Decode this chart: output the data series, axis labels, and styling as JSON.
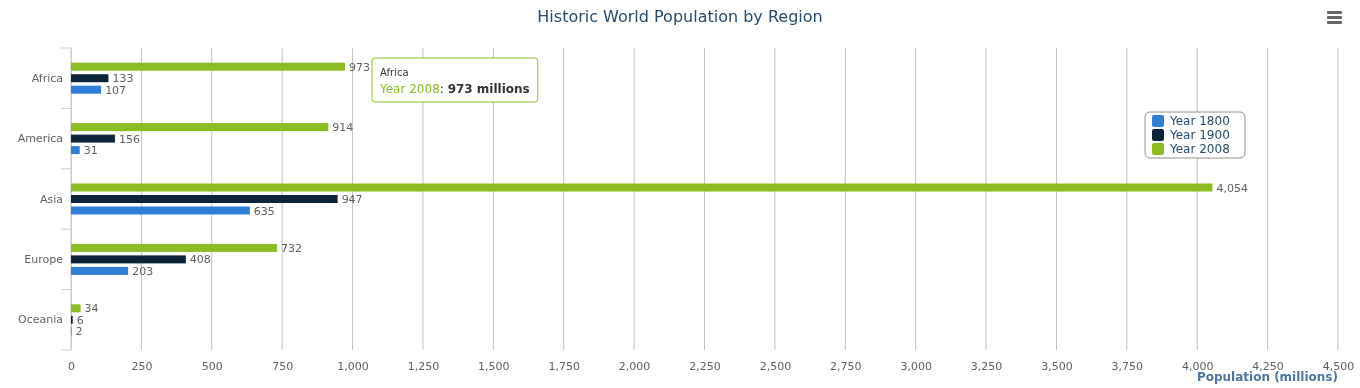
{
  "chart_data": {
    "type": "bar",
    "orientation": "horizontal",
    "title": "Historic World Population by Region",
    "xlabel": "Population (millions)",
    "categories": [
      "Africa",
      "America",
      "Asia",
      "Europe",
      "Oceania"
    ],
    "series": [
      {
        "name": "Year 1800",
        "color": "#2f7ed8",
        "values": [
          107,
          31,
          635,
          203,
          2
        ],
        "value_labels": [
          "107",
          "31",
          "635",
          "203",
          "2"
        ]
      },
      {
        "name": "Year 1900",
        "color": "#0d233a",
        "values": [
          133,
          156,
          947,
          408,
          6
        ],
        "value_labels": [
          "133",
          "156",
          "947",
          "408",
          "6"
        ]
      },
      {
        "name": "Year 2008",
        "color": "#8bbc21",
        "values": [
          973,
          914,
          4054,
          732,
          34
        ],
        "value_labels": [
          "973",
          "914",
          "4,054",
          "732",
          "34"
        ]
      }
    ],
    "xlim": [
      0,
      4500
    ],
    "xticks": [
      0,
      250,
      500,
      750,
      {
        "value": 1000,
        "label": "1,000"
      },
      {
        "value": 1250,
        "label": "1,250"
      },
      {
        "value": 1500,
        "label": "1,500"
      },
      {
        "value": 1750,
        "label": "1,750"
      },
      {
        "value": 2000,
        "label": "2,000"
      },
      {
        "value": 2250,
        "label": "2,250"
      },
      {
        "value": 2500,
        "label": "2,500"
      },
      {
        "value": 2750,
        "label": "2,750"
      },
      {
        "value": 3000,
        "label": "3,000"
      },
      {
        "value": 3250,
        "label": "3,250"
      },
      {
        "value": 3500,
        "label": "3,500"
      },
      {
        "value": 3750,
        "label": "3,750"
      },
      {
        "value": 4000,
        "label": "4,000"
      },
      {
        "value": 4250,
        "label": "4,250"
      },
      {
        "value": 4500,
        "label": "4,500"
      }
    ],
    "grid": "x",
    "legend": "right",
    "annotations": [
      "Africa\nYear 2008: 973 millions"
    ]
  }
}
